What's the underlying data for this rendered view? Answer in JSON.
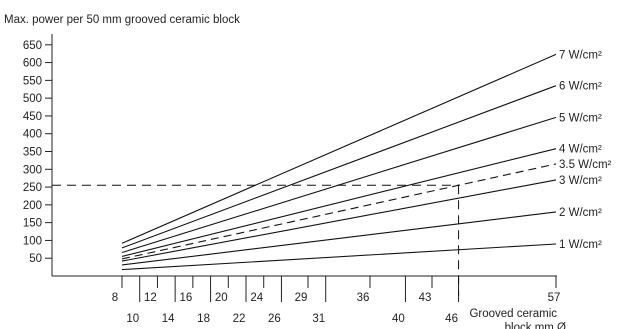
{
  "chart_data": {
    "type": "line",
    "title": "Max. power per 50 mm grooved ceramic block",
    "xlabel": "Grooved ceramic block mm Ø",
    "x_ticks": [
      8,
      10,
      12,
      14,
      16,
      18,
      20,
      22,
      24,
      26,
      29,
      31,
      36,
      40,
      43,
      46,
      57
    ],
    "xlim": [
      8,
      57
    ],
    "y_ticks": [
      50,
      100,
      150,
      200,
      250,
      300,
      350,
      400,
      450,
      500,
      550,
      600,
      650
    ],
    "ylim": [
      0,
      680
    ],
    "grid": false,
    "series": [
      {
        "name": "1 W/cm²",
        "x": [
          8,
          57
        ],
        "y": [
          18,
          90
        ],
        "style": "solid"
      },
      {
        "name": "2 W/cm²",
        "x": [
          8,
          57
        ],
        "y": [
          31,
          180
        ],
        "style": "solid"
      },
      {
        "name": "3 W/cm²",
        "x": [
          8,
          57
        ],
        "y": [
          42,
          270
        ],
        "style": "solid"
      },
      {
        "name": "3.5 W/cm²",
        "x": [
          8,
          57
        ],
        "y": [
          48,
          315
        ],
        "style": "dashed"
      },
      {
        "name": "4 W/cm²",
        "x": [
          8,
          57
        ],
        "y": [
          55,
          358
        ],
        "style": "solid"
      },
      {
        "name": "5 W/cm²",
        "x": [
          8,
          57
        ],
        "y": [
          66,
          446
        ],
        "style": "solid"
      },
      {
        "name": "6 W/cm²",
        "x": [
          8,
          57
        ],
        "y": [
          79,
          535
        ],
        "style": "solid"
      },
      {
        "name": "7 W/cm²",
        "x": [
          8,
          57
        ],
        "y": [
          92,
          623
        ],
        "style": "solid"
      }
    ],
    "reference_lines": [
      {
        "type": "horizontal",
        "y": 255,
        "x": [
          0,
          46
        ],
        "style": "dashed"
      },
      {
        "type": "vertical",
        "x": 46,
        "y": [
          0,
          255
        ],
        "style": "dashed"
      }
    ]
  }
}
